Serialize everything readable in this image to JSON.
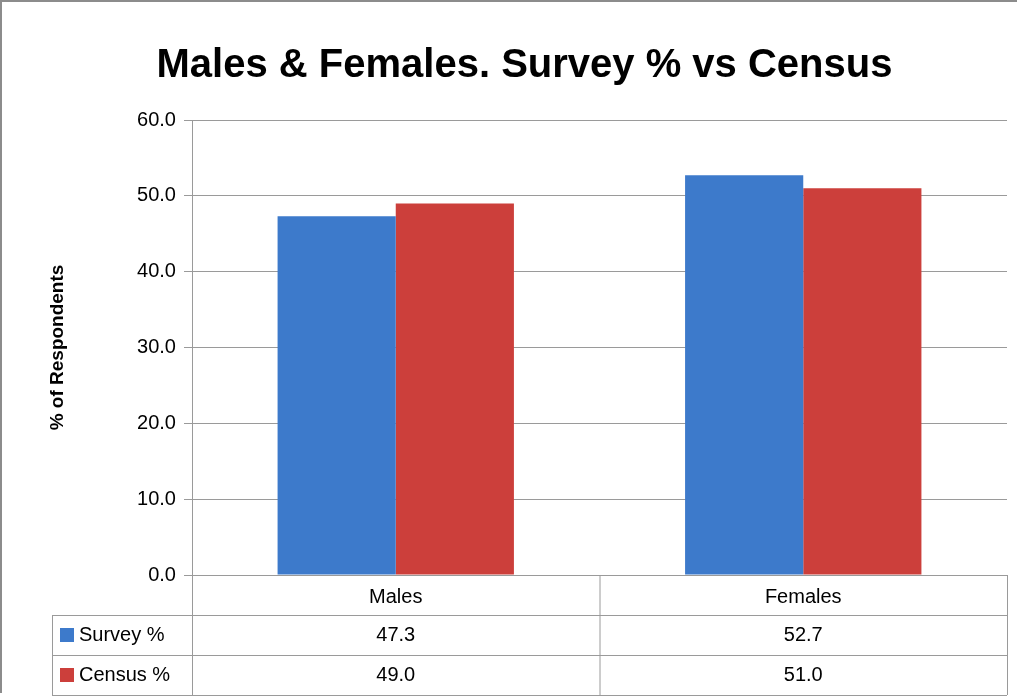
{
  "chart_data": {
    "type": "bar",
    "title": "Males & Females. Survey % vs Census",
    "ylabel": "% of Respondents",
    "categories": [
      "Males",
      "Females"
    ],
    "series": [
      {
        "name": "Survey %",
        "color": "#3d7acb",
        "values": [
          47.3,
          52.7
        ],
        "value_labels": [
          "47.3",
          "52.7"
        ]
      },
      {
        "name": "Census %",
        "color": "#cc3f3b",
        "values": [
          49.0,
          51.0
        ],
        "value_labels": [
          "49.0",
          "51.0"
        ]
      }
    ],
    "ylim": [
      0,
      60
    ],
    "yticks": [
      {
        "value": 0,
        "label": "0.0"
      },
      {
        "value": 10,
        "label": "10.0"
      },
      {
        "value": 20,
        "label": "20.0"
      },
      {
        "value": 30,
        "label": "30.0"
      },
      {
        "value": 40,
        "label": "40.0"
      },
      {
        "value": 50,
        "label": "50.0"
      },
      {
        "value": 60,
        "label": "60.0"
      }
    ],
    "grid": "y",
    "legend": "bottom left"
  }
}
